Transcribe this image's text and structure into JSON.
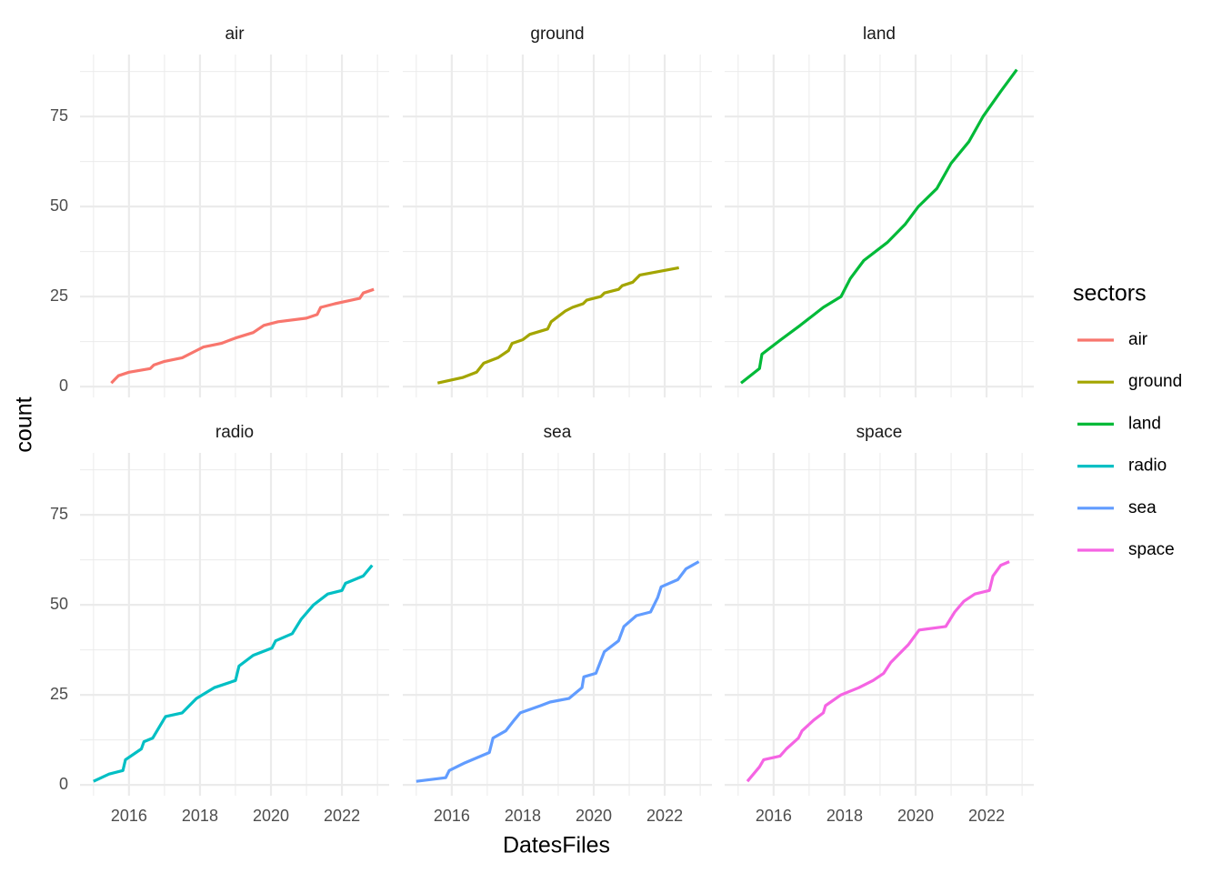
{
  "chart_data": {
    "type": "line",
    "xlabel": "DatesFiles",
    "ylabel": "count",
    "legend_title": "sectors",
    "xlim": [
      2014.62,
      2023.33
    ],
    "xticks": [
      2016,
      2018,
      2020,
      2022
    ],
    "xminor": [
      2015,
      2017,
      2019,
      2021,
      2023
    ],
    "ylim": [
      -3.0,
      92.2
    ],
    "yticks": [
      0,
      25,
      50,
      75
    ],
    "yminor": [
      12.5,
      37.5,
      62.5,
      87.5
    ],
    "grid": true,
    "series": [
      {
        "name": "air",
        "color": "#F8766D",
        "x": [
          2015.5,
          2015.7,
          2016,
          2016.6,
          2016.7,
          2017,
          2017.5,
          2017.9,
          2018.1,
          2018.6,
          2019,
          2019.5,
          2019.8,
          2020.2,
          2021,
          2021.3,
          2021.4,
          2021.8,
          2022.5,
          2022.6,
          2022.9
        ],
        "values": [
          1,
          3,
          4,
          5,
          6,
          7,
          8,
          10,
          11,
          12,
          13.5,
          15,
          17,
          18,
          19,
          20,
          22,
          23,
          24.5,
          26,
          27
        ]
      },
      {
        "name": "ground",
        "color": "#A3A500",
        "x": [
          2015.6,
          2016.3,
          2016.7,
          2016.9,
          2017.3,
          2017.6,
          2017.7,
          2018,
          2018.2,
          2018.7,
          2018.8,
          2019.2,
          2019.4,
          2019.7,
          2019.8,
          2020.2,
          2020.3,
          2020.7,
          2020.8,
          2021.1,
          2021.3,
          2022.4
        ],
        "values": [
          1,
          2.5,
          4,
          6.5,
          8,
          10,
          12,
          13,
          14.5,
          16,
          18,
          21,
          22,
          23,
          24,
          25,
          26,
          27,
          28,
          29,
          31,
          33
        ]
      },
      {
        "name": "land",
        "color": "#00BA38",
        "x": [
          2015.08,
          2015.6,
          2015.67,
          2016.2,
          2016.75,
          2017.4,
          2017.9,
          2018.16,
          2018.54,
          2019.2,
          2019.7,
          2020.08,
          2020.6,
          2021,
          2021.5,
          2021.9,
          2022.4,
          2022.85
        ],
        "values": [
          1,
          5,
          9,
          13,
          17,
          22,
          25,
          30,
          35,
          40,
          45,
          50,
          55,
          62,
          68,
          75,
          82,
          88
        ]
      },
      {
        "name": "radio",
        "color": "#00BFC4",
        "x": [
          2015,
          2015.44,
          2015.83,
          2015.9,
          2016.35,
          2016.42,
          2016.67,
          2016.85,
          2017.03,
          2017.5,
          2017.9,
          2018.4,
          2019,
          2019.1,
          2019.5,
          2020.03,
          2020.13,
          2020.6,
          2020.85,
          2021.2,
          2021.6,
          2022,
          2022.1,
          2022.6,
          2022.85
        ],
        "values": [
          1,
          3,
          4,
          7,
          10,
          12,
          13,
          16,
          19,
          20,
          24,
          27,
          29,
          33,
          36,
          38,
          40,
          42,
          46,
          50,
          53,
          54,
          56,
          58,
          61
        ]
      },
      {
        "name": "sea",
        "color": "#619CFF",
        "x": [
          2015,
          2015.83,
          2015.93,
          2016.34,
          2017.06,
          2017.16,
          2017.52,
          2017.76,
          2017.93,
          2018.5,
          2018.77,
          2019.3,
          2019.67,
          2019.72,
          2020.06,
          2020.3,
          2020.7,
          2020.85,
          2021.2,
          2021.6,
          2021.8,
          2021.9,
          2022.37,
          2022.6,
          2022.96
        ],
        "values": [
          1,
          2,
          4,
          6,
          9,
          13,
          15,
          18,
          20,
          22,
          23,
          24,
          27,
          30,
          31,
          37,
          40,
          44,
          47,
          48,
          52,
          55,
          57,
          60,
          62
        ]
      },
      {
        "name": "space",
        "color": "#F564E3",
        "x": [
          2015.26,
          2015.6,
          2015.72,
          2016.18,
          2016.36,
          2016.7,
          2016.8,
          2017.13,
          2017.4,
          2017.46,
          2017.9,
          2018.4,
          2018.8,
          2019.1,
          2019.3,
          2019.8,
          2020.1,
          2020.85,
          2021.1,
          2021.36,
          2021.67,
          2022.08,
          2022.18,
          2022.4,
          2022.64
        ],
        "values": [
          1,
          5,
          7,
          8,
          10,
          13,
          15,
          18,
          20,
          22,
          25,
          27,
          29,
          31,
          34,
          39,
          43,
          44,
          48,
          51,
          53,
          54,
          58,
          61,
          62
        ]
      }
    ]
  }
}
